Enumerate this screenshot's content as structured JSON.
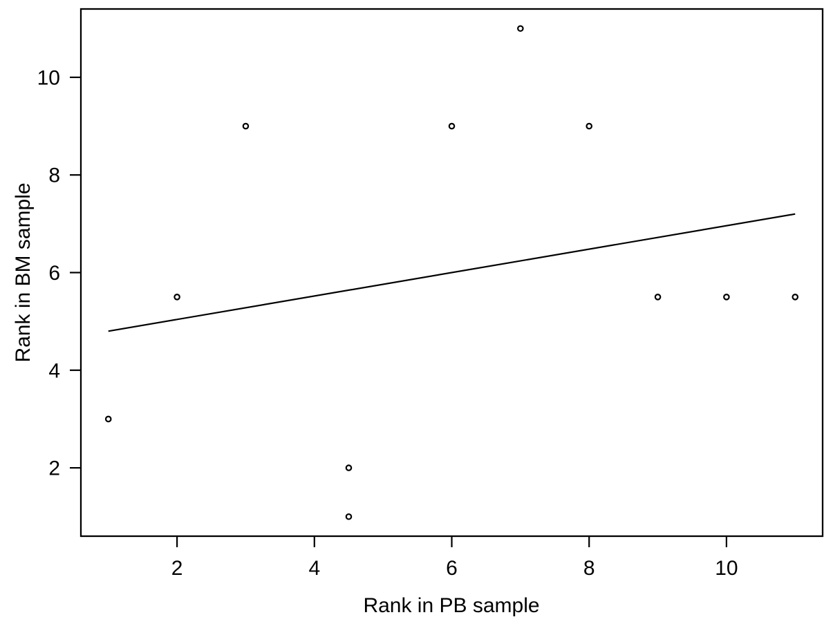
{
  "figure": {
    "background_color": "#ffffff",
    "foreground_color": "#000000"
  },
  "chart_data": {
    "type": "scatter",
    "title": "",
    "xlabel": "Rank in PB sample",
    "ylabel": "Rank in BM sample",
    "marker": "open-circle",
    "grid": false,
    "legend": null,
    "x": [
      1,
      2,
      3,
      4.5,
      4.5,
      6,
      7,
      8,
      9,
      10,
      11
    ],
    "y": [
      3,
      5.5,
      9,
      2,
      1,
      9,
      11,
      9,
      5.5,
      5.5,
      5.5
    ],
    "xticks": [
      2,
      4,
      6,
      8,
      10
    ],
    "yticks": [
      2,
      4,
      6,
      8,
      10
    ],
    "xlim": [
      0.6,
      11.4
    ],
    "ylim": [
      0.6,
      11.4
    ],
    "trend_line": {
      "x1": 1,
      "y1": 4.8,
      "x2": 11,
      "y2": 7.2,
      "slope": 0.24,
      "intercept": 4.56
    }
  }
}
